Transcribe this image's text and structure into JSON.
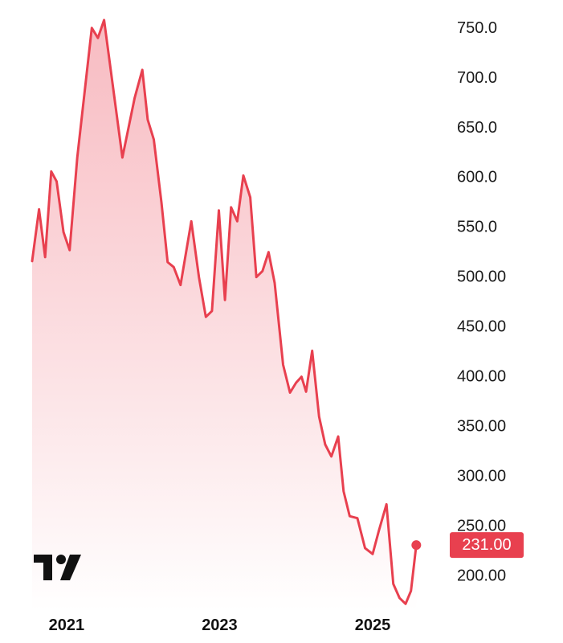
{
  "colors": {
    "line": "#e8404f",
    "fill_top": "#f7b4bb",
    "fill_bottom": "#ffffff",
    "badge_bg": "#e8404f",
    "badge_text": "#ffffff",
    "logo": "#111111"
  },
  "logo": {
    "icon": "tradingview-logo-icon"
  },
  "chart_data": {
    "type": "area",
    "title": "",
    "xlabel": "",
    "ylabel": "",
    "y_axis_position": "right",
    "grid": false,
    "xlim": [
      2020.55,
      2025.85
    ],
    "ylim": [
      165,
      770
    ],
    "x_ticks": [
      {
        "value": 2021,
        "label": "2021"
      },
      {
        "value": 2023,
        "label": "2023"
      },
      {
        "value": 2025,
        "label": "2025"
      }
    ],
    "y_ticks": [
      {
        "value": 750,
        "label": "750.0"
      },
      {
        "value": 700,
        "label": "700.0"
      },
      {
        "value": 650,
        "label": "650.0"
      },
      {
        "value": 600,
        "label": "600.0"
      },
      {
        "value": 550,
        "label": "550.0"
      },
      {
        "value": 500,
        "label": "500.00"
      },
      {
        "value": 450,
        "label": "450.00"
      },
      {
        "value": 400,
        "label": "400.00"
      },
      {
        "value": 350,
        "label": "350.00"
      },
      {
        "value": 300,
        "label": "300.00"
      },
      {
        "value": 250,
        "label": "250.00"
      },
      {
        "value": 200,
        "label": "200.00"
      }
    ],
    "last_value": {
      "value": 231,
      "label": "231.00"
    },
    "series": [
      {
        "x": [
          2020.55,
          2020.64,
          2020.72,
          2020.8,
          2020.87,
          2020.96,
          2021.04,
          2021.14,
          2021.33,
          2021.41,
          2021.49,
          2021.73,
          2021.89,
          2021.99,
          2022.06,
          2022.14,
          2022.24,
          2022.32,
          2022.4,
          2022.49,
          2022.63,
          2022.73,
          2022.82,
          2022.9,
          2022.99,
          2023.07,
          2023.15,
          2023.23,
          2023.31,
          2023.4,
          2023.48,
          2023.56,
          2023.64,
          2023.72,
          2023.83,
          2023.92,
          2024.0,
          2024.07,
          2024.13,
          2024.21,
          2024.3,
          2024.38,
          2024.46,
          2024.55,
          2024.62,
          2024.7,
          2024.8,
          2024.9,
          2025.0,
          2025.08,
          2025.18,
          2025.27,
          2025.35,
          2025.43,
          2025.5,
          2025.57
        ],
        "y": [
          516,
          568,
          520,
          606,
          596,
          545,
          527,
          620,
          750,
          740,
          758,
          620,
          680,
          708,
          658,
          638,
          575,
          515,
          510,
          492,
          556,
          500,
          460,
          466,
          567,
          477,
          570,
          556,
          602,
          580,
          500,
          506,
          525,
          494,
          412,
          384,
          394,
          400,
          385,
          426,
          360,
          332,
          320,
          340,
          285,
          260,
          258,
          228,
          222,
          245,
          272,
          192,
          178,
          172,
          185,
          231
        ]
      }
    ]
  }
}
